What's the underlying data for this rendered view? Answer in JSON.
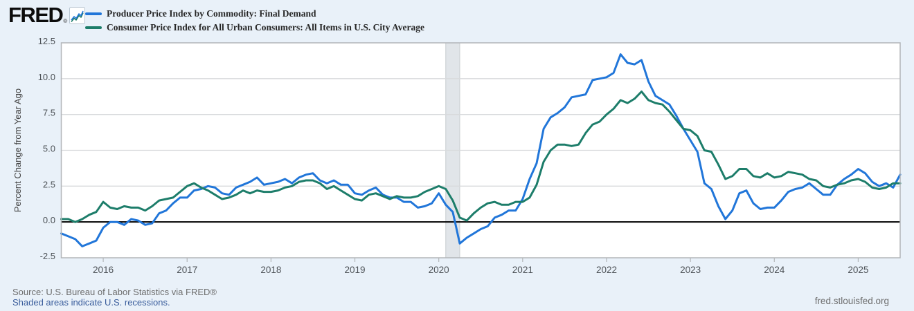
{
  "header": {
    "logo_text": "FRED",
    "registered_mark": "®",
    "logo_icon": "line-chart-icon"
  },
  "footer": {
    "source_text": "Source: U.S. Bureau of Labor Statistics via FRED®",
    "recession_note": "Shaded areas indicate U.S. recessions.",
    "site_url": "fred.stlouisfed.org"
  },
  "colors": {
    "page_background": "#e9f1f9",
    "plot_background": "#ffffff",
    "plot_border": "#b3b6b9",
    "gridline": "#d8dadc",
    "zero_line": "#000000",
    "recession_band_fill": "#e1e5e9",
    "recession_band_edge": "#c8ccd0",
    "tick_label": "#4d5257",
    "axis_title": "#444444",
    "series_blue": "#2176d9",
    "series_green": "#1d7d6a"
  },
  "chart_data": {
    "type": "line",
    "frequency": "monthly",
    "x_start": "2015-07",
    "x_end": "2025-07",
    "ylabel": "Percent Change from Year Ago",
    "ylim": [
      -2.5,
      12.5
    ],
    "y_tick_labels": [
      "12.5",
      "10.0",
      "7.5",
      "5.0",
      "2.5",
      "0.0",
      "-2.5"
    ],
    "y_tick_values": [
      12.5,
      10.0,
      7.5,
      5.0,
      2.5,
      0.0,
      -2.5
    ],
    "x_year_ticks": [
      2016,
      2017,
      2018,
      2019,
      2020,
      2021,
      2022,
      2023,
      2024,
      2025
    ],
    "grid": "horizontal-only",
    "zero_line": true,
    "legend_position": "top-left",
    "recession_bands": [
      {
        "start": "2020-02",
        "end": "2020-04"
      }
    ],
    "series": [
      {
        "name": "Producer Price Index by Commodity: Final Demand",
        "color": "#2176d9",
        "values": [
          -0.8,
          -1.0,
          -1.2,
          -1.7,
          -1.5,
          -1.3,
          -0.4,
          0.0,
          0.0,
          -0.2,
          0.2,
          0.1,
          -0.2,
          -0.1,
          0.6,
          0.8,
          1.3,
          1.7,
          1.7,
          2.2,
          2.3,
          2.5,
          2.4,
          2.0,
          1.9,
          2.4,
          2.6,
          2.8,
          3.1,
          2.6,
          2.7,
          2.8,
          3.0,
          2.7,
          3.1,
          3.3,
          3.4,
          2.9,
          2.7,
          2.9,
          2.6,
          2.6,
          2.0,
          1.9,
          2.2,
          2.4,
          1.9,
          1.7,
          1.7,
          1.4,
          1.4,
          1.0,
          1.1,
          1.3,
          2.0,
          1.2,
          0.7,
          -1.5,
          -1.1,
          -0.8,
          -0.5,
          -0.3,
          0.3,
          0.5,
          0.8,
          0.8,
          1.6,
          3.0,
          4.1,
          6.5,
          7.3,
          7.6,
          8.0,
          8.7,
          8.8,
          8.9,
          9.9,
          10.0,
          10.1,
          10.4,
          11.7,
          11.1,
          11.0,
          11.3,
          9.8,
          8.8,
          8.5,
          8.2,
          7.4,
          6.5,
          5.7,
          4.9,
          2.7,
          2.3,
          1.1,
          0.2,
          0.8,
          2.0,
          2.2,
          1.3,
          0.9,
          1.0,
          1.0,
          1.5,
          2.1,
          2.3,
          2.4,
          2.7,
          2.3,
          1.9,
          1.9,
          2.6,
          3.0,
          3.3,
          3.7,
          3.4,
          2.8,
          2.5,
          2.7,
          2.4,
          3.3
        ]
      },
      {
        "name": "Consumer Price Index for All Urban Consumers: All Items in U.S. City Average",
        "color": "#1d7d6a",
        "values": [
          0.2,
          0.2,
          0.0,
          0.2,
          0.5,
          0.7,
          1.4,
          1.0,
          0.9,
          1.1,
          1.0,
          1.0,
          0.8,
          1.1,
          1.5,
          1.6,
          1.7,
          2.1,
          2.5,
          2.7,
          2.4,
          2.2,
          1.9,
          1.6,
          1.7,
          1.9,
          2.2,
          2.0,
          2.2,
          2.1,
          2.1,
          2.2,
          2.4,
          2.5,
          2.8,
          2.9,
          2.9,
          2.7,
          2.3,
          2.5,
          2.2,
          1.9,
          1.6,
          1.5,
          1.9,
          2.0,
          1.8,
          1.6,
          1.8,
          1.7,
          1.7,
          1.8,
          2.1,
          2.3,
          2.5,
          2.3,
          1.5,
          0.3,
          0.1,
          0.6,
          1.0,
          1.3,
          1.4,
          1.2,
          1.2,
          1.4,
          1.4,
          1.7,
          2.6,
          4.2,
          5.0,
          5.4,
          5.4,
          5.3,
          5.4,
          6.2,
          6.8,
          7.0,
          7.5,
          7.9,
          8.5,
          8.3,
          8.6,
          9.1,
          8.5,
          8.3,
          8.2,
          7.7,
          7.1,
          6.5,
          6.4,
          6.0,
          5.0,
          4.9,
          4.0,
          3.0,
          3.2,
          3.7,
          3.7,
          3.2,
          3.1,
          3.4,
          3.1,
          3.2,
          3.5,
          3.4,
          3.3,
          3.0,
          2.9,
          2.5,
          2.4,
          2.6,
          2.7,
          2.9,
          3.0,
          2.8,
          2.4,
          2.3,
          2.4,
          2.7,
          2.7
        ]
      }
    ]
  }
}
